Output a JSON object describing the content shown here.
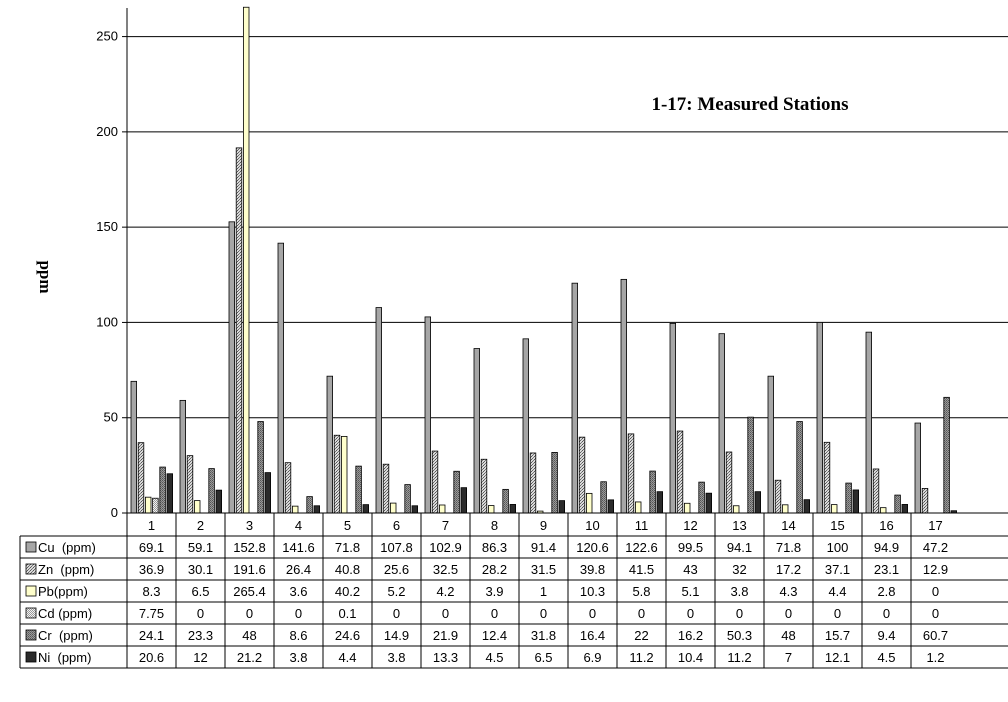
{
  "chart_data": {
    "type": "bar",
    "ylabel": "ppm",
    "annotation": "1-17: Measured Stations",
    "ylim": [
      0,
      265
    ],
    "yticks": [
      0,
      50,
      100,
      150,
      200,
      250
    ],
    "grid": true,
    "categories": [
      "1",
      "2",
      "3",
      "4",
      "5",
      "6",
      "7",
      "8",
      "9",
      "10",
      "11",
      "12",
      "13",
      "14",
      "15",
      "16",
      "17"
    ],
    "series": [
      {
        "name": "Cu  (ppm)",
        "labels": [
          "69.1",
          "59.1",
          "152.8",
          "141.6",
          "71.8",
          "107.8",
          "102.9",
          "86.3",
          "91.4",
          "120.6",
          "122.6",
          "99.5",
          "94.1",
          "71.8",
          "100",
          "94.9",
          "47.2"
        ],
        "values": [
          69.1,
          59.1,
          152.8,
          141.6,
          71.8,
          107.8,
          102.9,
          86.3,
          91.4,
          120.6,
          122.6,
          99.5,
          94.1,
          71.8,
          100,
          94.9,
          47.2
        ]
      },
      {
        "name": "Zn  (ppm)",
        "labels": [
          "36.9",
          "30.1",
          "191.6",
          "26.4",
          "40.8",
          "25.6",
          "32.5",
          "28.2",
          "31.5",
          "39.8",
          "41.5",
          "43",
          "32",
          "17.2",
          "37.1",
          "23.1",
          "12.9"
        ],
        "values": [
          36.9,
          30.1,
          191.6,
          26.4,
          40.8,
          25.6,
          32.5,
          28.2,
          31.5,
          39.8,
          41.5,
          43,
          32,
          17.2,
          37.1,
          23.1,
          12.9
        ]
      },
      {
        "name": "Pb(ppm)",
        "labels": [
          "8.3",
          "6.5",
          "265.4",
          "3.6",
          "40.2",
          "5.2",
          "4.2",
          "3.9",
          "1",
          "10.3",
          "5.8",
          "5.1",
          "3.8",
          "4.3",
          "4.4",
          "2.8",
          "0"
        ],
        "values": [
          8.3,
          6.5,
          265.4,
          3.6,
          40.2,
          5.2,
          4.2,
          3.9,
          1,
          10.3,
          5.8,
          5.1,
          3.8,
          4.3,
          4.4,
          2.8,
          0
        ]
      },
      {
        "name": "Cd (ppm)",
        "labels": [
          "7.75",
          "0",
          "0",
          "0",
          "0.1",
          "0",
          "0",
          "0",
          "0",
          "0",
          "0",
          "0",
          "0",
          "0",
          "0",
          "0",
          "0"
        ],
        "values": [
          7.75,
          0,
          0,
          0,
          0.1,
          0,
          0,
          0,
          0,
          0,
          0,
          0,
          0,
          0,
          0,
          0,
          0
        ]
      },
      {
        "name": "Cr  (ppm)",
        "labels": [
          "24.1",
          "23.3",
          "48",
          "8.6",
          "24.6",
          "14.9",
          "21.9",
          "12.4",
          "31.8",
          "16.4",
          "22",
          "16.2",
          "50.3",
          "48",
          "15.7",
          "9.4",
          "60.7"
        ],
        "values": [
          24.1,
          23.3,
          48,
          8.6,
          24.6,
          14.9,
          21.9,
          12.4,
          31.8,
          16.4,
          22,
          16.2,
          50.3,
          48,
          15.7,
          9.4,
          60.7
        ]
      },
      {
        "name": "Ni  (ppm)",
        "labels": [
          "20.6",
          "12",
          "21.2",
          "3.8",
          "4.4",
          "3.8",
          "13.3",
          "4.5",
          "6.5",
          "6.9",
          "11.2",
          "10.4",
          "11.2",
          "7",
          "12.1",
          "4.5",
          "1.2"
        ],
        "values": [
          20.6,
          12,
          21.2,
          3.8,
          4.4,
          3.8,
          13.3,
          4.5,
          6.5,
          6.9,
          11.2,
          10.4,
          11.2,
          7,
          12.1,
          4.5,
          1.2
        ]
      }
    ],
    "colors": {
      "Cu": "#a6a6a6",
      "Zn": "#bdbdbd",
      "Pb": "#ffffcc",
      "Cd": "#e6e6e6",
      "Cr": "#8c8c8c",
      "Ni": "#2b2b2b",
      "axis": "#000000",
      "grid": "#000000"
    }
  }
}
